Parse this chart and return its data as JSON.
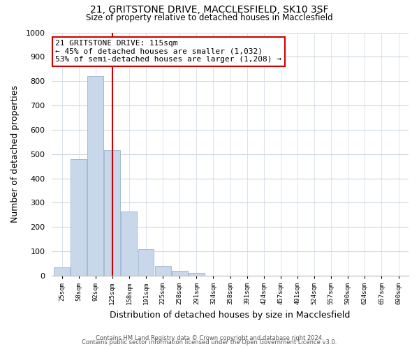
{
  "title_line1": "21, GRITSTONE DRIVE, MACCLESFIELD, SK10 3SF",
  "title_line2": "Size of property relative to detached houses in Macclesfield",
  "xlabel": "Distribution of detached houses by size in Macclesfield",
  "ylabel": "Number of detached properties",
  "bar_color": "#c8d8ea",
  "bar_edge_color": "#9ab4cc",
  "vline_color": "#cc0000",
  "annotation_title": "21 GRITSTONE DRIVE: 115sqm",
  "annotation_line1": "← 45% of detached houses are smaller (1,032)",
  "annotation_line2": "53% of semi-detached houses are larger (1,208) →",
  "annotation_box_color": "#ffffff",
  "annotation_box_edge": "#cc0000",
  "categories": [
    "25sqm",
    "58sqm",
    "92sqm",
    "125sqm",
    "158sqm",
    "191sqm",
    "225sqm",
    "258sqm",
    "291sqm",
    "324sqm",
    "358sqm",
    "391sqm",
    "424sqm",
    "457sqm",
    "491sqm",
    "524sqm",
    "557sqm",
    "590sqm",
    "624sqm",
    "657sqm",
    "690sqm"
  ],
  "values": [
    35,
    480,
    820,
    515,
    265,
    110,
    40,
    20,
    10,
    0,
    0,
    0,
    0,
    0,
    0,
    0,
    0,
    0,
    0,
    0,
    0
  ],
  "ylim": [
    0,
    1000
  ],
  "yticks": [
    0,
    100,
    200,
    300,
    400,
    500,
    600,
    700,
    800,
    900,
    1000
  ],
  "footer_line1": "Contains HM Land Registry data © Crown copyright and database right 2024.",
  "footer_line2": "Contains public sector information licensed under the Open Government Licence v3.0.",
  "background_color": "#ffffff",
  "grid_color": "#ccd8e4"
}
